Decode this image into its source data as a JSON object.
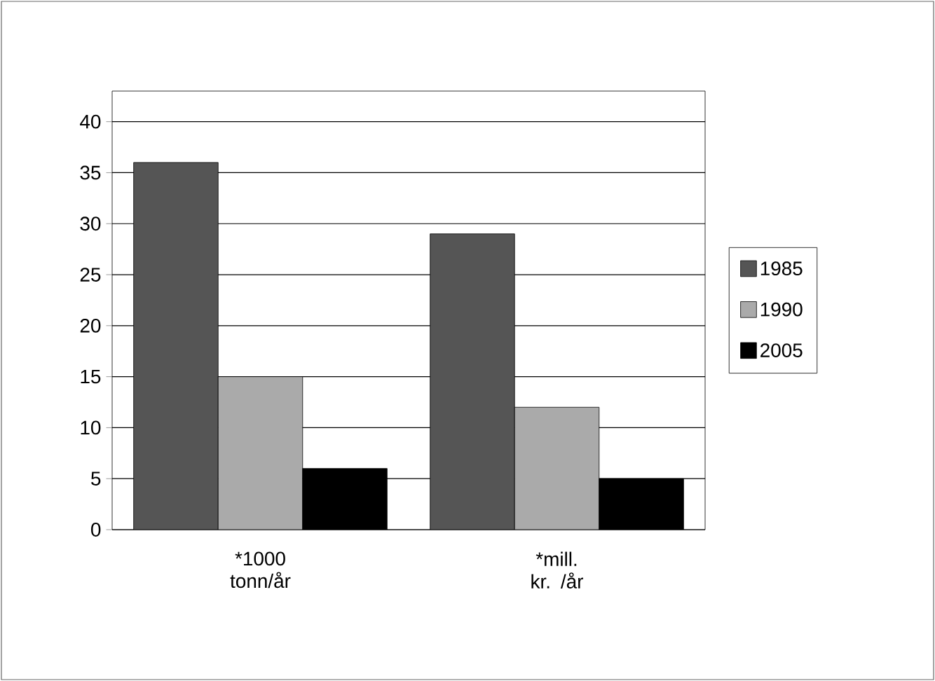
{
  "chart_data": {
    "type": "bar",
    "categories": [
      "*1000 tonn/år",
      "*mill. kr. /år"
    ],
    "series": [
      {
        "name": "1985",
        "color": "#555555",
        "values": [
          36,
          29
        ]
      },
      {
        "name": "1990",
        "color": "#aaaaaa",
        "values": [
          15,
          12
        ]
      },
      {
        "name": "2005",
        "color": "#000000",
        "values": [
          6,
          5
        ]
      }
    ],
    "ylim": [
      0,
      43
    ],
    "yticks": [
      0,
      5,
      10,
      15,
      20,
      25,
      30,
      35,
      40
    ],
    "grid": "y",
    "legend": "right"
  }
}
